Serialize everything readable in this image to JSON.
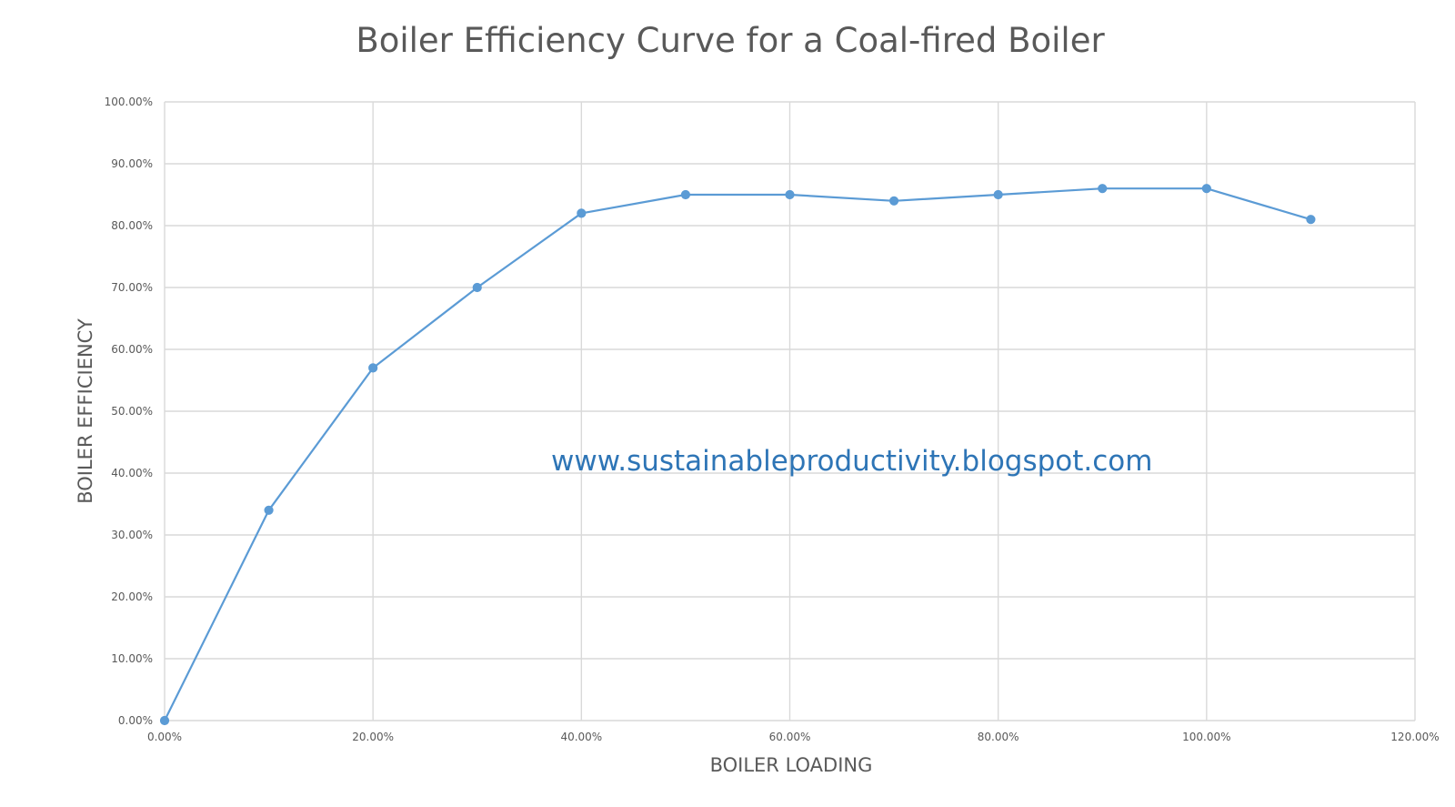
{
  "chart_data": {
    "type": "line",
    "title": "Boiler Efficiency Curve for a Coal-fired Boiler",
    "xlabel": "BOILER LOADING",
    "ylabel": "BOILER EFFICIENCY",
    "xlim": [
      0,
      120
    ],
    "ylim": [
      0,
      100
    ],
    "x_ticks": [
      {
        "value": 0,
        "label": "0.00%"
      },
      {
        "value": 20,
        "label": "20.00%"
      },
      {
        "value": 40,
        "label": "40.00%"
      },
      {
        "value": 60,
        "label": "60.00%"
      },
      {
        "value": 80,
        "label": "80.00%"
      },
      {
        "value": 100,
        "label": "100.00%"
      },
      {
        "value": 120,
        "label": "120.00%"
      }
    ],
    "y_ticks": [
      {
        "value": 0,
        "label": "0.00%"
      },
      {
        "value": 10,
        "label": "10.00%"
      },
      {
        "value": 20,
        "label": "20.00%"
      },
      {
        "value": 30,
        "label": "30.00%"
      },
      {
        "value": 40,
        "label": "40.00%"
      },
      {
        "value": 50,
        "label": "50.00%"
      },
      {
        "value": 60,
        "label": "60.00%"
      },
      {
        "value": 70,
        "label": "70.00%"
      },
      {
        "value": 80,
        "label": "80.00%"
      },
      {
        "value": 90,
        "label": "90.00%"
      },
      {
        "value": 100,
        "label": "100.00%"
      }
    ],
    "series": [
      {
        "x": [
          0,
          10,
          20,
          30,
          40,
          50,
          60,
          70,
          80,
          90,
          100,
          110
        ],
        "y": [
          0,
          34,
          57,
          70,
          82,
          85,
          85,
          84,
          85,
          86,
          86,
          81
        ],
        "color": "#5b9bd5",
        "markers": true
      }
    ],
    "grid": true,
    "legend": "none",
    "annotation": "www.sustainableproductivity.blogspot.com"
  }
}
